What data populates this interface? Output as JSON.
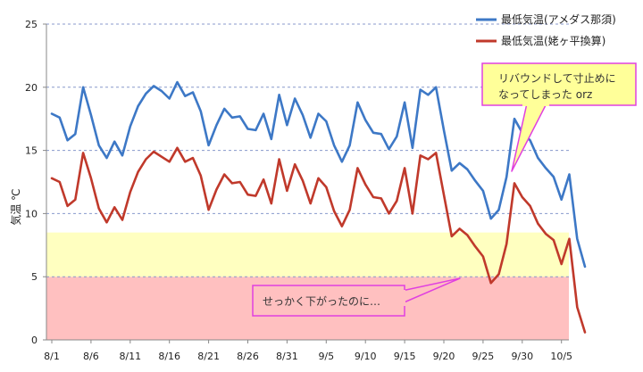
{
  "chart_data": {
    "type": "line",
    "title": "",
    "xlabel": "",
    "ylabel": "気温 ℃",
    "ylim": [
      0,
      25
    ],
    "yticks": [
      0,
      5,
      10,
      15,
      20,
      25
    ],
    "x_tick_labels": [
      "8/1",
      "8/6",
      "8/11",
      "8/16",
      "8/21",
      "8/26",
      "8/31",
      "9/5",
      "9/10",
      "9/15",
      "9/20",
      "9/25",
      "9/30",
      "10/5"
    ],
    "grid": "horizontal dashed",
    "legend_placement": "top-right",
    "bands": [
      {
        "from": 0,
        "to": 5,
        "color": "#ffc0c0"
      },
      {
        "from": 5,
        "to": 8.5,
        "color": "#ffffc0"
      }
    ],
    "series": [
      {
        "name": "最低気温(アメダス那須)",
        "color": "#3d78c6",
        "values": [
          17.9,
          17.6,
          15.8,
          16.3,
          20.0,
          17.8,
          15.4,
          14.4,
          15.7,
          14.6,
          16.9,
          18.5,
          19.5,
          20.1,
          19.7,
          19.1,
          20.4,
          19.3,
          19.6,
          18.1,
          15.4,
          17.0,
          18.3,
          17.6,
          17.7,
          16.7,
          16.6,
          17.9,
          15.9,
          19.4,
          17.0,
          19.1,
          17.8,
          16.0,
          17.9,
          17.3,
          15.4,
          14.1,
          15.4,
          18.8,
          17.4,
          16.4,
          16.3,
          15.1,
          16.1,
          18.8,
          15.2,
          19.8,
          19.4,
          20.0,
          16.6,
          13.4,
          14.0,
          13.5,
          12.6,
          11.8,
          9.6,
          10.3,
          12.9,
          17.5,
          16.4,
          15.8,
          14.4,
          13.6,
          12.9,
          11.1,
          13.1,
          8.0,
          5.8
        ]
      },
      {
        "name": "最低気温(姥ヶ平換算)",
        "color": "#c0392b",
        "values": [
          12.8,
          12.5,
          10.6,
          11.1,
          14.8,
          12.8,
          10.4,
          9.3,
          10.5,
          9.5,
          11.7,
          13.3,
          14.3,
          14.9,
          14.5,
          14.1,
          15.2,
          14.1,
          14.4,
          13.0,
          10.3,
          11.9,
          13.1,
          12.4,
          12.5,
          11.5,
          11.4,
          12.7,
          10.8,
          14.3,
          11.8,
          13.9,
          12.6,
          10.8,
          12.8,
          12.1,
          10.2,
          9.0,
          10.3,
          13.6,
          12.3,
          11.3,
          11.2,
          10.0,
          11.0,
          13.6,
          10.0,
          14.6,
          14.3,
          14.8,
          11.5,
          8.2,
          8.8,
          8.3,
          7.4,
          6.6,
          4.5,
          5.2,
          7.6,
          12.4,
          11.3,
          10.6,
          9.2,
          8.4,
          7.9,
          6.0,
          8.0,
          2.6,
          0.6
        ]
      }
    ],
    "annotations": [
      {
        "text_lines": [
          "リバウンドして寸止めに",
          "なってしまった orz"
        ],
        "fill": "#ffff99",
        "border": "#e040e0"
      },
      {
        "text_lines": [
          "せっかく下がったのに…"
        ],
        "fill": "#ffc0c0",
        "border": "#e040e0"
      }
    ]
  }
}
